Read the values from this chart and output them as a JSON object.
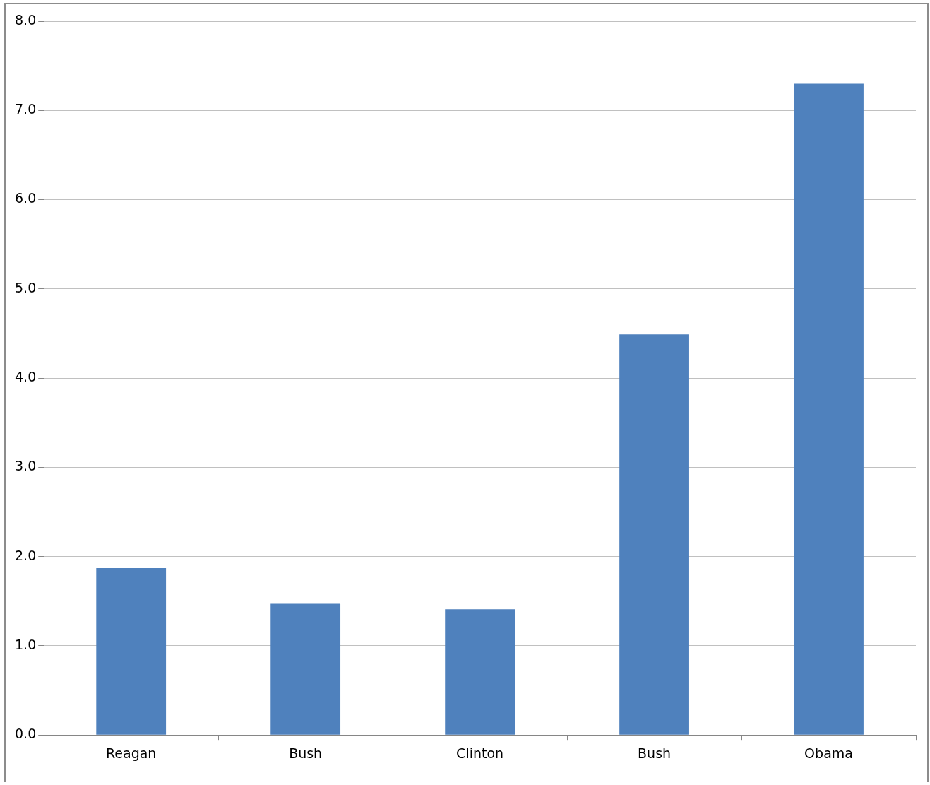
{
  "chart_data": {
    "type": "bar",
    "categories": [
      "Reagan",
      "Bush",
      "Clinton",
      "Bush",
      "Obama"
    ],
    "values": [
      1.87,
      1.47,
      1.41,
      4.49,
      7.3
    ],
    "color": "#4f81bd",
    "ylim": [
      0,
      8
    ],
    "yticks": [
      {
        "value": 0,
        "label": "0.0"
      },
      {
        "value": 1,
        "label": "1.0"
      },
      {
        "value": 2,
        "label": "2.0"
      },
      {
        "value": 3,
        "label": "3.0"
      },
      {
        "value": 4,
        "label": "4.0"
      },
      {
        "value": 5,
        "label": "5.0"
      },
      {
        "value": 6,
        "label": "6.0"
      },
      {
        "value": 7,
        "label": "7.0"
      },
      {
        "value": 8,
        "label": "8.0"
      }
    ],
    "grid": "y",
    "legend": false
  }
}
